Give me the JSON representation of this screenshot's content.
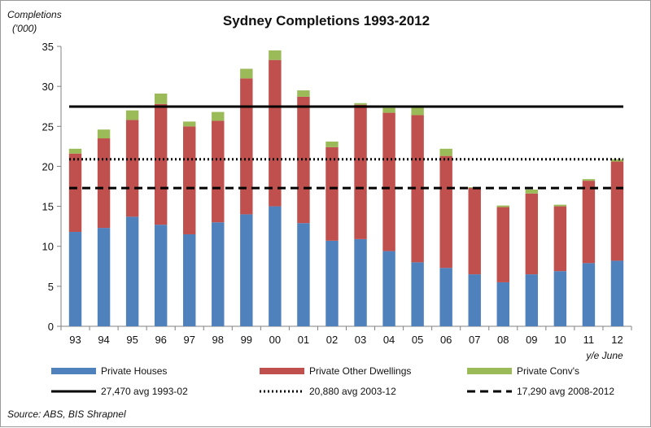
{
  "chart_data": {
    "type": "bar",
    "stacked": true,
    "title": "Sydney Completions 1993-2012",
    "ylabel": "Completions ('000)",
    "ylabel_lines": [
      "Completions",
      "('000)"
    ],
    "x_note": "y/e June",
    "ylim": [
      0,
      35
    ],
    "yticks": [
      0,
      5,
      10,
      15,
      20,
      25,
      30,
      35
    ],
    "grid": false,
    "legend_placement": "bottom",
    "categories": [
      "93",
      "94",
      "95",
      "96",
      "97",
      "98",
      "99",
      "00",
      "01",
      "02",
      "03",
      "04",
      "05",
      "06",
      "07",
      "08",
      "09",
      "10",
      "11",
      "12"
    ],
    "series": [
      {
        "name": "Private Houses",
        "color": "#4f81bd",
        "values": [
          11.8,
          12.3,
          13.7,
          12.7,
          11.5,
          13.0,
          14.0,
          15.0,
          12.9,
          10.7,
          10.9,
          9.4,
          8.0,
          7.3,
          6.5,
          5.5,
          6.5,
          6.9,
          7.9,
          8.2
        ]
      },
      {
        "name": "Private Other Dwellings",
        "color": "#c0504d",
        "values": [
          9.8,
          11.2,
          12.1,
          15.1,
          13.5,
          12.7,
          17.0,
          18.3,
          15.8,
          11.7,
          16.8,
          17.3,
          18.4,
          14.0,
          10.8,
          9.4,
          10.1,
          8.1,
          10.3,
          12.4
        ]
      },
      {
        "name": "Private Conv's",
        "color": "#9bbb59",
        "values": [
          0.6,
          1.1,
          1.2,
          1.3,
          0.6,
          1.1,
          1.2,
          1.2,
          0.8,
          0.7,
          0.2,
          0.6,
          1.2,
          0.9,
          0.1,
          0.2,
          0.5,
          0.2,
          0.2,
          0.3
        ]
      }
    ],
    "reference_lines": [
      {
        "label": "27,470 avg 1993-02",
        "value": 27.47,
        "style": "solid"
      },
      {
        "label": "20,880 avg 2003-12",
        "value": 20.88,
        "style": "dotted"
      },
      {
        "label": "17,290 avg 2008-2012",
        "value": 17.29,
        "style": "dashed"
      }
    ],
    "source": "Source: ABS, BIS Shrapnel"
  }
}
